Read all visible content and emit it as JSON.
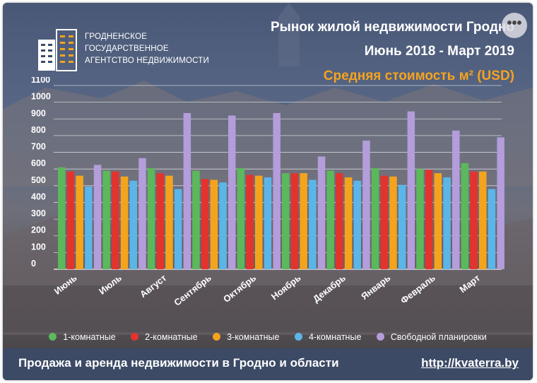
{
  "logo": {
    "line1": "ГРОДНЕНСКОЕ",
    "line2": "ГОСУДАРСТВЕННОЕ",
    "line3": "АГЕНТСТВО НЕДВИЖИМОСТИ"
  },
  "header": {
    "title_line1": "Рынок жилой недвижимости Гродно",
    "title_line2": "Июнь 2018 - Март 2019",
    "subtitle": "Средняя стоимость м² (USD)",
    "menu_label": "•••"
  },
  "colors": {
    "series": [
      "#5cb85c",
      "#e2342d",
      "#f4a41c",
      "#5bb5e8",
      "#b49ddb"
    ],
    "subtitle": "#f6a31f",
    "footer_bg": "#3c4a66"
  },
  "chart_data": {
    "type": "bar",
    "categories": [
      "Июнь",
      "Июль",
      "Август",
      "Сентябрь",
      "Октябрь",
      "Ноябрь",
      "Декабрь",
      "Январь",
      "Февраль",
      "Март"
    ],
    "series": [
      {
        "name": "1-комнатные",
        "values": [
          610,
          590,
          605,
          590,
          605,
          575,
          590,
          605,
          600,
          635
        ]
      },
      {
        "name": "2-комнатные",
        "values": [
          585,
          585,
          575,
          540,
          565,
          575,
          575,
          560,
          595,
          585
        ]
      },
      {
        "name": "3-комнатные",
        "values": [
          560,
          555,
          560,
          535,
          560,
          575,
          550,
          555,
          575,
          585
        ]
      },
      {
        "name": "4-комнатные",
        "values": [
          495,
          530,
          480,
          520,
          550,
          535,
          530,
          505,
          550,
          480
        ]
      },
      {
        "name": "Свободной планировки",
        "values": [
          625,
          665,
          935,
          920,
          935,
          675,
          770,
          945,
          830,
          790
        ]
      }
    ],
    "y_ticks": [
      "0",
      "100",
      "200",
      "300",
      "400",
      "500",
      "600",
      "700",
      "800",
      "900",
      "1000",
      "1100"
    ],
    "ylim": [
      0,
      1100
    ],
    "grid": true,
    "legend_position": "bottom"
  },
  "footer": {
    "text": "Продажа и аренда недвижимости в Гродно и области",
    "link": "http://kvaterra.by"
  }
}
